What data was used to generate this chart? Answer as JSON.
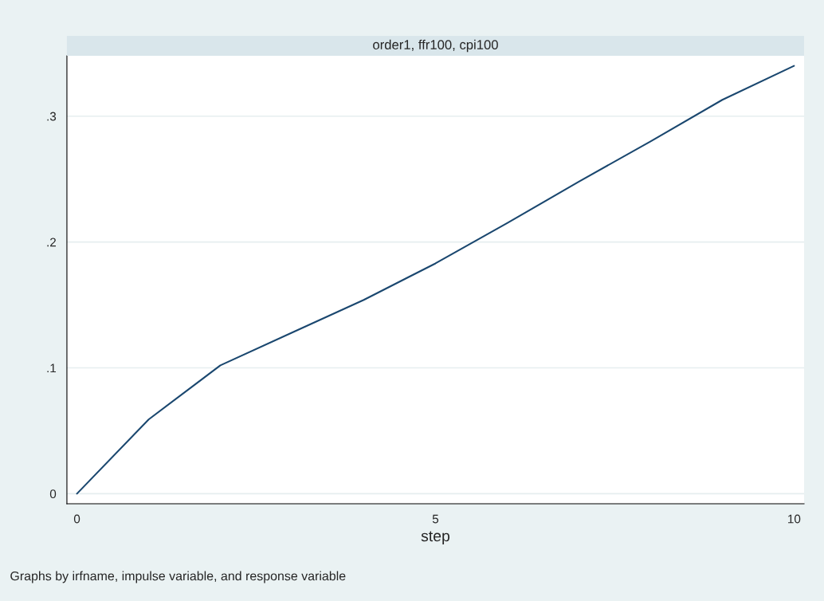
{
  "chart_data": {
    "type": "line",
    "title": "order1, ffr100, cpi100",
    "xlabel": "step",
    "annotations": [
      "Graphs by irfname, impulse variable, and response variable"
    ],
    "x": [
      0,
      1,
      2,
      3,
      4,
      5,
      6,
      7,
      8,
      9,
      10
    ],
    "series": [
      {
        "color": "#1a476f",
        "values": [
          0,
          0.059,
          0.102,
          0.128,
          0.154,
          0.183,
          0.215,
          0.248,
          0.28,
          0.313,
          0.34
        ]
      }
    ],
    "xlim": [
      -0.14,
      10.14
    ],
    "ylim": [
      -0.008,
      0.348
    ],
    "xticks": [
      0,
      5,
      10
    ],
    "yticks": [
      {
        "value": 0,
        "label": "0"
      },
      {
        "value": 0.1,
        "label": ".1"
      },
      {
        "value": 0.2,
        "label": ".2"
      },
      {
        "value": 0.3,
        "label": ".3"
      }
    ],
    "grid": "y",
    "marker": "none",
    "line_style": "solid"
  }
}
